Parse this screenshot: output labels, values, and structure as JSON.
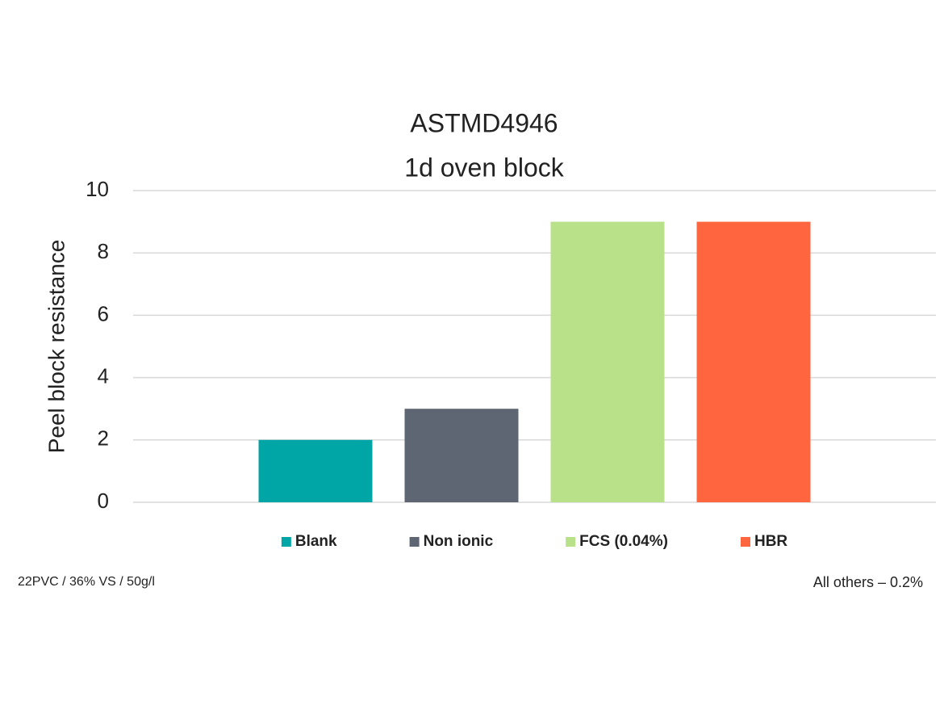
{
  "chart_data": {
    "type": "bar",
    "title": "ASTMD4946",
    "subtitle": "1d oven block",
    "y_label": "Peel block resistance",
    "categories": [
      null
    ],
    "series": [
      {
        "name": "Blank",
        "color": "#00a5a5",
        "values": [
          2
        ]
      },
      {
        "name": "Non ionic",
        "color": "#5f6673",
        "values": [
          3
        ]
      },
      {
        "name": "FCS (0.04%)",
        "color": "#b8e18a",
        "values": [
          9
        ]
      },
      {
        "name": "HBR",
        "color": "#ff6640",
        "values": [
          9
        ]
      }
    ],
    "ylim": [
      0,
      10
    ],
    "yticks": [
      0,
      2,
      4,
      6,
      8,
      10
    ],
    "grid": true,
    "legend": "bottom",
    "annotations": [
      "22PVC / 36% VS / 50g/l",
      "All others – 0.2%"
    ]
  }
}
